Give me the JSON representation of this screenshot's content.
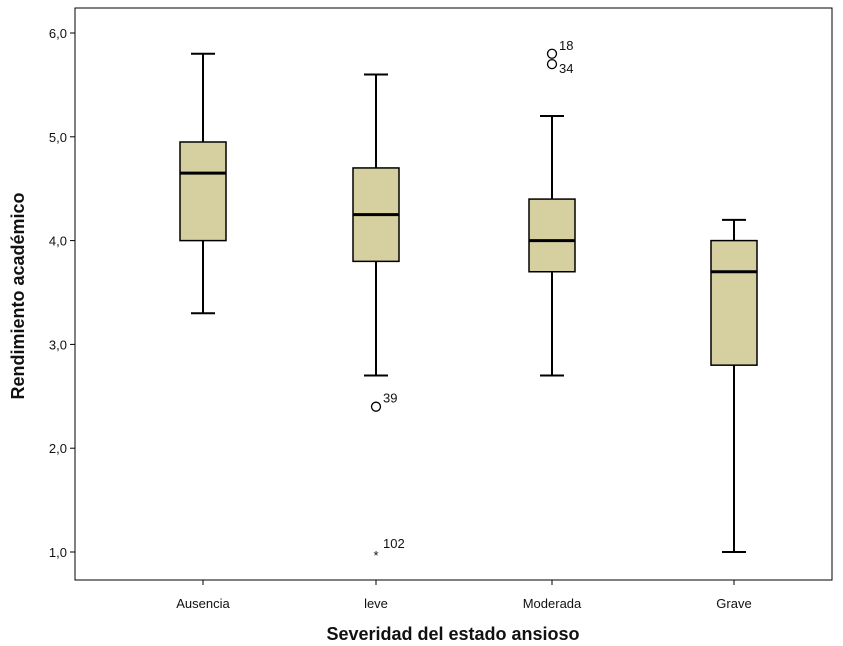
{
  "chart_data": {
    "type": "boxplot",
    "xlabel": "Severidad del estado ansioso",
    "ylabel": "Rendimiento académico",
    "ylim": [
      0.8,
      6.25
    ],
    "yticks": [
      1,
      2,
      3,
      4,
      5,
      6
    ],
    "ytick_labels": [
      "1,0",
      "2,0",
      "3,0",
      "4,0",
      "5,0",
      "6,0"
    ],
    "grid": false,
    "box_color": "#D6D0A0",
    "categories": [
      "Ausencia",
      "leve",
      "Moderada",
      "Grave"
    ],
    "boxes": [
      {
        "category": "Ausencia",
        "whisker_low": 3.3,
        "q1": 4.0,
        "median": 4.65,
        "q3": 4.95,
        "whisker_high": 5.8,
        "outliers": []
      },
      {
        "category": "leve",
        "whisker_low": 2.7,
        "q1": 3.8,
        "median": 4.25,
        "q3": 4.7,
        "whisker_high": 5.6,
        "outliers": [
          {
            "value": 2.4,
            "label": "39",
            "marker": "circle"
          },
          {
            "value": 1.0,
            "label": "102",
            "marker": "star"
          }
        ]
      },
      {
        "category": "Moderada",
        "whisker_low": 2.7,
        "q1": 3.7,
        "median": 4.0,
        "q3": 4.4,
        "whisker_high": 5.2,
        "outliers": [
          {
            "value": 5.8,
            "label": "18",
            "marker": "circle"
          },
          {
            "value": 5.7,
            "label": "34",
            "marker": "circle"
          }
        ]
      },
      {
        "category": "Grave",
        "whisker_low": 1.0,
        "q1": 2.8,
        "median": 3.7,
        "q3": 4.0,
        "whisker_high": 4.2,
        "outliers": []
      }
    ]
  }
}
